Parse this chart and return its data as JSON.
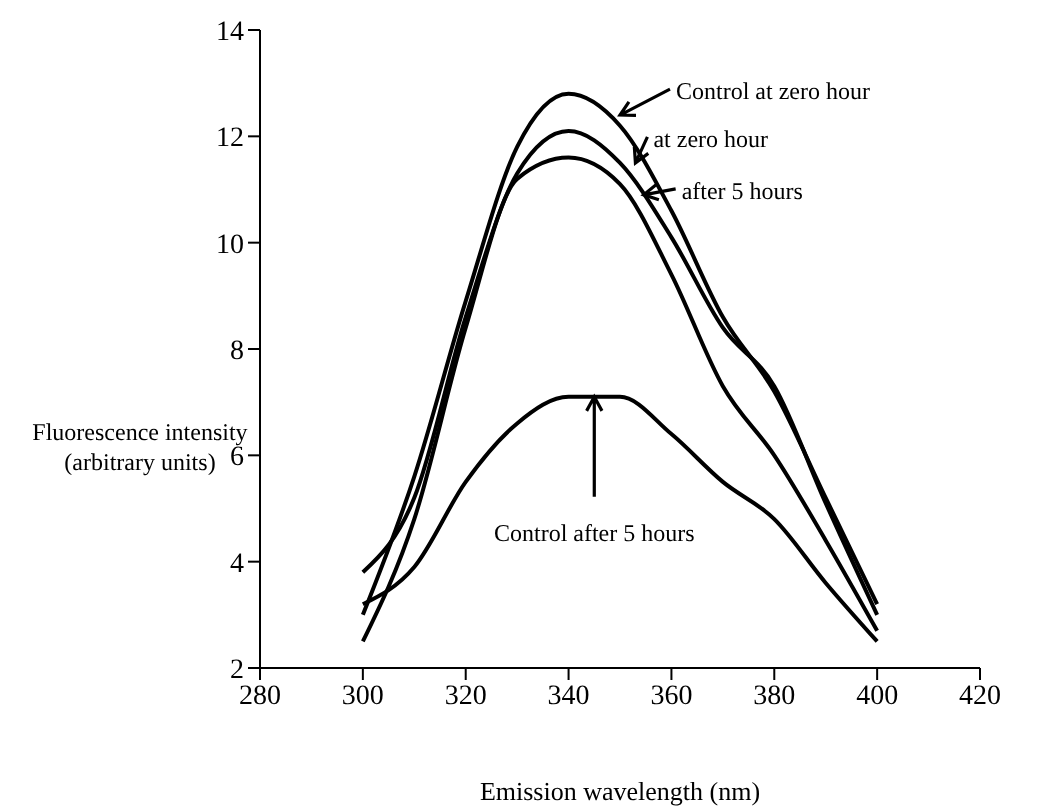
{
  "chart_data": {
    "type": "line",
    "xlabel": "Emission wavelength (nm)",
    "ylabel": "Fluorescence intensity\n(arbitrary units)",
    "x": [
      300,
      310,
      320,
      330,
      340,
      350,
      360,
      370,
      380,
      390,
      400
    ],
    "series": [
      {
        "color": "#000000",
        "values": [
          3.0,
          5.6,
          8.9,
          11.8,
          12.8,
          12.2,
          10.6,
          8.6,
          7.2,
          5.2,
          3.2
        ]
      },
      {
        "color": "#000000",
        "values": [
          3.8,
          5.2,
          8.6,
          11.3,
          12.1,
          11.5,
          10.1,
          8.4,
          7.3,
          5.1,
          3.0
        ]
      },
      {
        "color": "#000000",
        "values": [
          2.5,
          4.8,
          8.4,
          11.2,
          11.6,
          11.1,
          9.4,
          7.3,
          6.0,
          4.4,
          2.7
        ]
      },
      {
        "color": "#000000",
        "values": [
          3.2,
          3.9,
          5.5,
          6.6,
          7.1,
          7.1,
          6.4,
          5.5,
          4.8,
          3.6,
          2.5
        ]
      }
    ],
    "xlim": [
      280,
      420
    ],
    "xticks": [
      280,
      300,
      320,
      340,
      360,
      380,
      400,
      420
    ],
    "ylim": [
      2,
      14
    ],
    "yticks": [
      2,
      4,
      6,
      8,
      10,
      12,
      14
    ],
    "grid": false,
    "legend": false,
    "marker": "none",
    "line_style": "solid",
    "annotations": [
      {
        "text": "Control at zero hour",
        "x": 350,
        "y": 12.4
      },
      {
        "text": "at zero hour",
        "x": 353,
        "y": 11.5
      },
      {
        "text": "after 5 hours",
        "x": 354.6,
        "y": 10.9
      },
      {
        "text": "Control after 5 hours",
        "x": 345,
        "y": 7.1
      }
    ]
  }
}
